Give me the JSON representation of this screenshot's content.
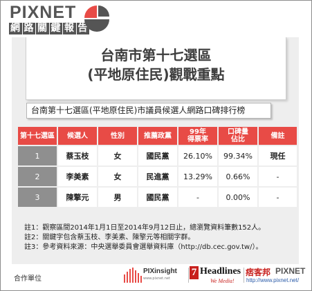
{
  "brand": {
    "name": "PIXNET",
    "product_words": [
      "網",
      "路",
      "關",
      "鍵",
      "報",
      "告"
    ]
  },
  "title": {
    "line1": "台南市第十七選區",
    "line2": "(平地原住民)觀戰重點"
  },
  "subtitle": "台南第十七選區(平地原住民)市議員候選人網路口碑排行榜",
  "table": {
    "headers": [
      "第十七選區",
      "候選人",
      "性別",
      "推薦政黨",
      "99年\n得票率",
      "口碑量\n佔比",
      "備註"
    ],
    "rows": [
      {
        "rank": "1",
        "name": "蔡玉枝",
        "gender": "女",
        "party": "國民黨",
        "vote_rate": "26.10%",
        "buzz_share": "99.34%",
        "note": "現任"
      },
      {
        "rank": "2",
        "name": "李美素",
        "gender": "女",
        "party": "民進黨",
        "vote_rate": "13.29%",
        "buzz_share": "0.66%",
        "note": "-"
      },
      {
        "rank": "3",
        "name": "陳擎元",
        "gender": "男",
        "party": "國民黨",
        "vote_rate": "-",
        "buzz_share": "0.00%",
        "note": "-"
      }
    ]
  },
  "notes": [
    "註1：觀察區間2014年1月1日至2014年9月12日止，總瀏覽資料筆數152人。",
    "註2：關鍵字包含蔡玉枝、李美素、陳擎元等相關字群。",
    "註3：參考資料來源：中央選舉委員會選舉資料庫（http://db.cec.gov.tw/）。"
  ],
  "footer": {
    "partner_label": "合作單位",
    "pixinsight_name": "PIXinsight",
    "pixinsight_url": "www.pixnet.net",
    "headlines_mark": "7",
    "headlines_name": "Headlines",
    "headlines_slogan": "We Media!",
    "blog_zh": "痞客邦",
    "blog_en": "PIXNET",
    "blog_url": "http://www.pixnet.net/"
  },
  "colors": {
    "header_red": "#e84b46",
    "rank_gray": "#8f8f8f",
    "card_bg": "#eeeeee",
    "logo_gray": "#555555"
  }
}
